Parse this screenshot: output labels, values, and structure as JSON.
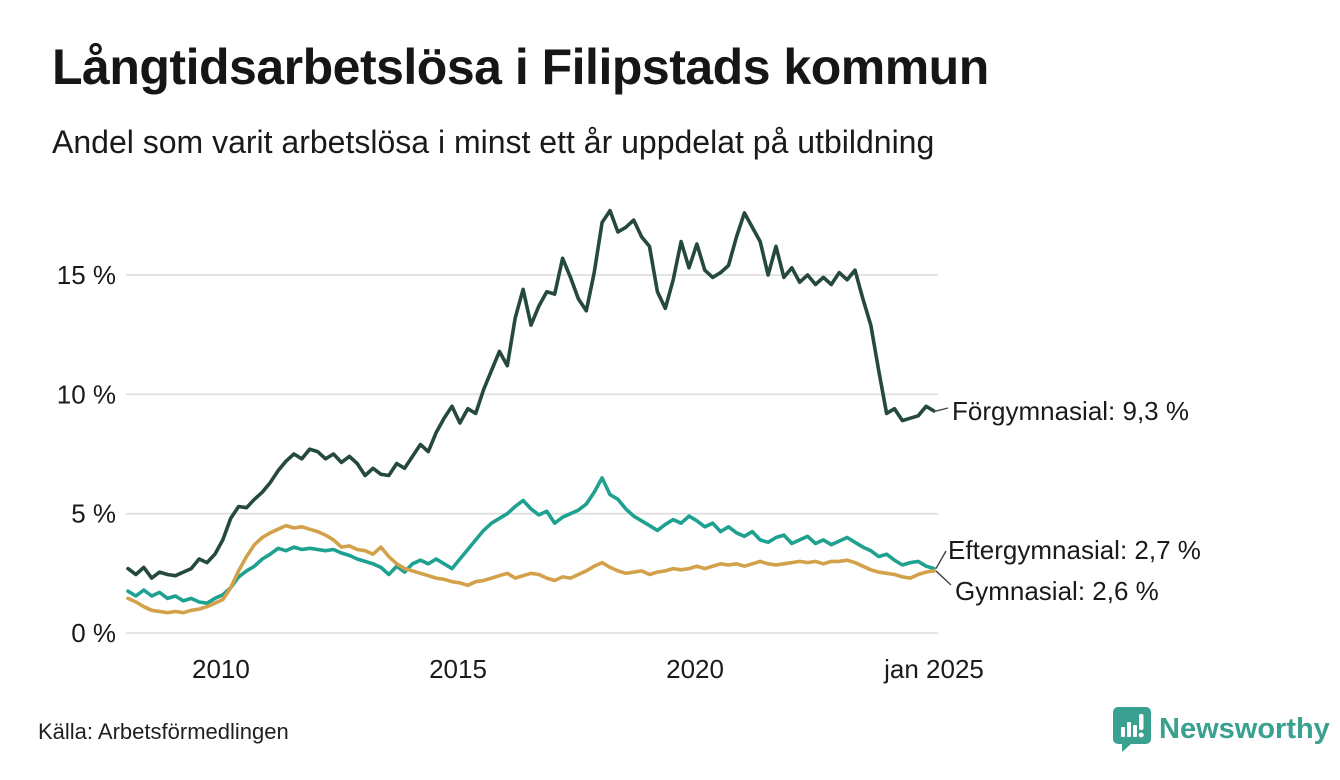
{
  "header": {
    "title": "Långtidsarbetslösa i Filipstads kommun",
    "subtitle": "Andel som varit arbetslösa i minst ett år uppdelat på utbildning"
  },
  "source": {
    "label": "Källa: Arbetsförmedlingen"
  },
  "branding": {
    "name": "Newsworthy",
    "color": "#3aa08f",
    "icon": "newsworthy-speech-bubble-bar-chart-icon"
  },
  "chart_data": {
    "type": "line",
    "title": "Långtidsarbetslösa i Filipstads kommun",
    "subtitle": "Andel som varit arbetslösa i minst ett år uppdelat på utbildning",
    "unit": "percent",
    "grid": true,
    "legend_position": "end-of-line-labels",
    "xlim": [
      2008.04,
      2025.04
    ],
    "ylim": [
      0,
      18.5
    ],
    "x_step": 0.1666667,
    "x_ticks": [
      {
        "t": 2010,
        "label": "2010"
      },
      {
        "t": 2015,
        "label": "2015"
      },
      {
        "t": 2020,
        "label": "2020"
      },
      {
        "t": 2025.04,
        "label": "jan 2025"
      }
    ],
    "y_ticks": [
      {
        "v": 0,
        "label": "0 %"
      },
      {
        "v": 5,
        "label": "5 %"
      },
      {
        "v": 10,
        "label": "10 %"
      },
      {
        "v": 15,
        "label": "15 %"
      }
    ],
    "gridline_color": "#dcdcdc",
    "series": [
      {
        "name": "Förgymnasial",
        "color": "#254a3c",
        "end_value": 9.3,
        "end_label": "Förgymnasial: 9,3 %",
        "values": [
          2.7,
          2.45,
          2.75,
          2.3,
          2.55,
          2.45,
          2.4,
          2.55,
          2.7,
          3.1,
          2.95,
          3.3,
          3.9,
          4.8,
          5.3,
          5.25,
          5.6,
          5.9,
          6.3,
          6.8,
          7.2,
          7.5,
          7.3,
          7.7,
          7.6,
          7.3,
          7.5,
          7.15,
          7.4,
          7.1,
          6.6,
          6.9,
          6.65,
          6.6,
          7.1,
          6.9,
          7.4,
          7.9,
          7.6,
          8.4,
          9.0,
          9.5,
          8.8,
          9.4,
          9.2,
          10.2,
          11.0,
          11.8,
          11.2,
          13.2,
          14.4,
          12.9,
          13.7,
          14.3,
          14.2,
          15.7,
          14.9,
          14.0,
          13.5,
          15.1,
          17.2,
          17.7,
          16.8,
          17.0,
          17.3,
          16.6,
          16.2,
          14.3,
          13.6,
          14.8,
          16.4,
          15.3,
          16.3,
          15.2,
          14.9,
          15.1,
          15.4,
          16.6,
          17.6,
          17.0,
          16.4,
          15.0,
          16.2,
          14.9,
          15.3,
          14.7,
          15.0,
          14.6,
          14.9,
          14.6,
          15.1,
          14.8,
          15.2,
          14.0,
          12.9,
          11.0,
          9.2,
          9.4,
          8.9,
          9.0,
          9.1,
          9.5,
          9.3
        ]
      },
      {
        "name": "Eftergymnasial",
        "color": "#1fa191",
        "end_value": 2.7,
        "end_label": "Eftergymnasial: 2,7 %",
        "values": [
          1.75,
          1.55,
          1.8,
          1.55,
          1.7,
          1.45,
          1.55,
          1.35,
          1.45,
          1.3,
          1.25,
          1.45,
          1.6,
          1.9,
          2.35,
          2.6,
          2.8,
          3.1,
          3.3,
          3.55,
          3.45,
          3.6,
          3.5,
          3.55,
          3.5,
          3.45,
          3.5,
          3.35,
          3.25,
          3.1,
          3.0,
          2.9,
          2.75,
          2.45,
          2.8,
          2.55,
          2.9,
          3.05,
          2.9,
          3.1,
          2.9,
          2.7,
          3.1,
          3.5,
          3.9,
          4.3,
          4.6,
          4.8,
          5.0,
          5.3,
          5.55,
          5.2,
          4.95,
          5.1,
          4.6,
          4.85,
          5.0,
          5.15,
          5.4,
          5.9,
          6.5,
          5.8,
          5.6,
          5.2,
          4.9,
          4.7,
          4.5,
          4.3,
          4.55,
          4.75,
          4.6,
          4.9,
          4.7,
          4.45,
          4.6,
          4.25,
          4.45,
          4.2,
          4.05,
          4.25,
          3.9,
          3.8,
          4.0,
          4.1,
          3.75,
          3.9,
          4.05,
          3.75,
          3.9,
          3.7,
          3.85,
          4.0,
          3.8,
          3.6,
          3.45,
          3.2,
          3.3,
          3.05,
          2.85,
          2.95,
          3.0,
          2.8,
          2.7
        ]
      },
      {
        "name": "Gymnasial",
        "color": "#d3a14a",
        "end_value": 2.6,
        "end_label": "Gymnasial: 2,6 %",
        "values": [
          1.45,
          1.3,
          1.1,
          0.95,
          0.9,
          0.85,
          0.9,
          0.85,
          0.95,
          1.0,
          1.1,
          1.25,
          1.4,
          1.9,
          2.6,
          3.2,
          3.7,
          4.0,
          4.2,
          4.35,
          4.5,
          4.4,
          4.45,
          4.35,
          4.25,
          4.1,
          3.9,
          3.6,
          3.65,
          3.5,
          3.45,
          3.3,
          3.6,
          3.2,
          2.9,
          2.7,
          2.6,
          2.5,
          2.4,
          2.3,
          2.25,
          2.15,
          2.1,
          2.0,
          2.15,
          2.2,
          2.3,
          2.4,
          2.5,
          2.3,
          2.4,
          2.5,
          2.45,
          2.3,
          2.2,
          2.35,
          2.3,
          2.45,
          2.6,
          2.8,
          2.95,
          2.75,
          2.6,
          2.5,
          2.55,
          2.6,
          2.45,
          2.55,
          2.6,
          2.7,
          2.65,
          2.7,
          2.8,
          2.7,
          2.8,
          2.9,
          2.85,
          2.9,
          2.8,
          2.9,
          3.0,
          2.9,
          2.85,
          2.9,
          2.95,
          3.0,
          2.95,
          3.0,
          2.9,
          3.0,
          3.0,
          3.05,
          2.95,
          2.8,
          2.65,
          2.55,
          2.5,
          2.45,
          2.35,
          2.3,
          2.45,
          2.55,
          2.6
        ]
      }
    ]
  }
}
